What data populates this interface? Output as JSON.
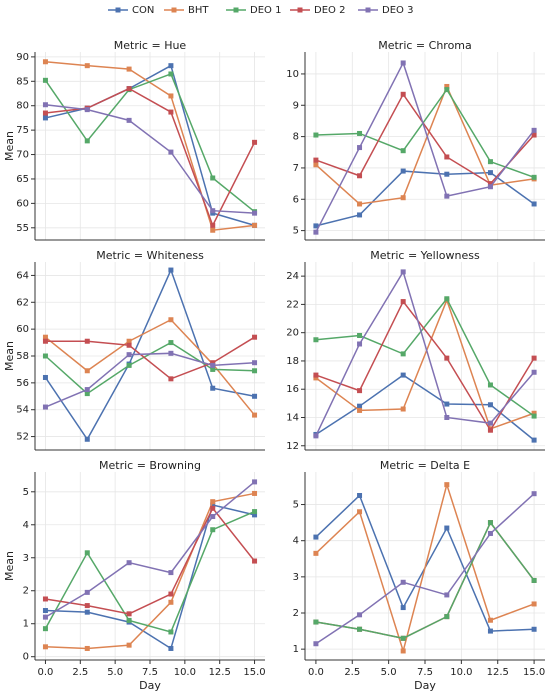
{
  "chart_data": [
    {
      "type": "line",
      "title": "Metric = Hue",
      "ylabel": "Mean",
      "legend": "top",
      "grid": true,
      "x": [
        0,
        3,
        6,
        9,
        12,
        15
      ],
      "xlim": [
        -0.75,
        15.75
      ],
      "ylim": [
        52.5,
        91
      ],
      "yticks": [
        55,
        60,
        65,
        70,
        75,
        80,
        85,
        90
      ],
      "series": [
        {
          "name": "CON",
          "color": "#4c72b0",
          "values": [
            77.5,
            79.5,
            83.5,
            88.2,
            58,
            55.5
          ]
        },
        {
          "name": "BHT",
          "color": "#dd8452",
          "values": [
            89,
            88.2,
            87.5,
            82,
            54.5,
            55.5
          ]
        },
        {
          "name": "DEO 1",
          "color": "#55a868",
          "values": [
            85.2,
            72.8,
            83.3,
            86.5,
            65.2,
            58.3
          ]
        },
        {
          "name": "DEO 2",
          "color": "#c44e52",
          "values": [
            78.5,
            79.5,
            83.5,
            78.7,
            55.5,
            72.5
          ]
        },
        {
          "name": "DEO 3",
          "color": "#8172b3",
          "values": [
            80.2,
            79.2,
            77,
            70.5,
            58.5,
            58
          ]
        }
      ]
    },
    {
      "type": "line",
      "title": "Metric = Chroma",
      "grid": true,
      "x": [
        0,
        3,
        6,
        9,
        12,
        15
      ],
      "xlim": [
        -0.75,
        15.75
      ],
      "ylim": [
        4.7,
        10.7
      ],
      "yticks": [
        5,
        6,
        7,
        8,
        9,
        10
      ],
      "series": [
        {
          "name": "CON",
          "color": "#4c72b0",
          "values": [
            5.15,
            5.5,
            6.9,
            6.8,
            6.85,
            5.85
          ]
        },
        {
          "name": "BHT",
          "color": "#dd8452",
          "values": [
            7.1,
            5.85,
            6.05,
            9.6,
            6.45,
            6.65
          ]
        },
        {
          "name": "DEO 1",
          "color": "#55a868",
          "values": [
            8.05,
            8.1,
            7.55,
            9.5,
            7.2,
            6.7
          ]
        },
        {
          "name": "DEO 2",
          "color": "#c44e52",
          "values": [
            7.25,
            6.75,
            9.35,
            7.35,
            6.5,
            8.05
          ]
        },
        {
          "name": "DEO 3",
          "color": "#8172b3",
          "values": [
            4.95,
            7.65,
            10.35,
            6.1,
            6.4,
            8.2
          ]
        }
      ]
    },
    {
      "type": "line",
      "title": "Metric = Whiteness",
      "ylabel": "Mean",
      "grid": true,
      "x": [
        0,
        3,
        6,
        9,
        12,
        15
      ],
      "xlim": [
        -0.75,
        15.75
      ],
      "ylim": [
        51,
        65
      ],
      "yticks": [
        52,
        54,
        56,
        58,
        60,
        62,
        64
      ],
      "series": [
        {
          "name": "CON",
          "color": "#4c72b0",
          "values": [
            56.4,
            51.8,
            57.4,
            64.4,
            55.6,
            55
          ]
        },
        {
          "name": "BHT",
          "color": "#dd8452",
          "values": [
            59.4,
            56.9,
            59.1,
            60.7,
            57.4,
            53.6
          ]
        },
        {
          "name": "DEO 1",
          "color": "#55a868",
          "values": [
            58,
            55.2,
            57.3,
            59,
            57,
            56.9
          ]
        },
        {
          "name": "DEO 2",
          "color": "#c44e52",
          "values": [
            59.1,
            59.1,
            58.8,
            56.3,
            57.5,
            59.4
          ]
        },
        {
          "name": "DEO 3",
          "color": "#8172b3",
          "values": [
            54.2,
            55.5,
            58.1,
            58.2,
            57.3,
            57.5
          ]
        }
      ]
    },
    {
      "type": "line",
      "title": "Metric = Yellowness",
      "grid": true,
      "x": [
        0,
        3,
        6,
        9,
        12,
        15
      ],
      "xlim": [
        -0.75,
        15.75
      ],
      "ylim": [
        11.7,
        25
      ],
      "yticks": [
        12,
        14,
        16,
        18,
        20,
        22,
        24
      ],
      "series": [
        {
          "name": "CON",
          "color": "#4c72b0",
          "values": [
            12.8,
            14.8,
            17,
            14.95,
            14.9,
            12.4
          ]
        },
        {
          "name": "BHT",
          "color": "#dd8452",
          "values": [
            16.8,
            14.5,
            14.6,
            22.3,
            13.2,
            14.3
          ]
        },
        {
          "name": "DEO 1",
          "color": "#55a868",
          "values": [
            19.5,
            19.8,
            18.5,
            22.4,
            16.3,
            14.1
          ]
        },
        {
          "name": "DEO 2",
          "color": "#c44e52",
          "values": [
            17,
            15.9,
            22.2,
            18.2,
            13.1,
            18.2
          ]
        },
        {
          "name": "DEO 3",
          "color": "#8172b3",
          "values": [
            12.7,
            19.2,
            24.3,
            14,
            13.6,
            17.2
          ]
        }
      ]
    },
    {
      "type": "line",
      "title": "Metric = Browning",
      "ylabel": "Mean",
      "xlabel": "Day",
      "grid": true,
      "x": [
        0,
        3,
        6,
        9,
        12,
        15
      ],
      "xlim": [
        -0.75,
        15.75
      ],
      "xticks": [
        {
          "value": 0,
          "label": "0.0"
        },
        {
          "value": 2.5,
          "label": "2.5"
        },
        {
          "value": 5,
          "label": "5.0"
        },
        {
          "value": 7.5,
          "label": "7.5"
        },
        {
          "value": 10,
          "label": "10.0"
        },
        {
          "value": 12.5,
          "label": "12.5"
        },
        {
          "value": 15,
          "label": "15.0"
        }
      ],
      "ylim": [
        -0.1,
        5.6
      ],
      "yticks": [
        0,
        1,
        2,
        3,
        4,
        5
      ],
      "series": [
        {
          "name": "CON",
          "color": "#4c72b0",
          "values": [
            1.4,
            1.35,
            1.05,
            0.25,
            4.6,
            4.3
          ]
        },
        {
          "name": "BHT",
          "color": "#dd8452",
          "values": [
            0.3,
            0.25,
            0.35,
            1.65,
            4.7,
            4.95
          ]
        },
        {
          "name": "DEO 1",
          "color": "#55a868",
          "values": [
            0.85,
            3.15,
            1.1,
            0.75,
            3.85,
            4.4
          ]
        },
        {
          "name": "DEO 2",
          "color": "#c44e52",
          "values": [
            1.75,
            1.55,
            1.3,
            1.9,
            4.5,
            2.9
          ]
        },
        {
          "name": "DEO 3",
          "color": "#8172b3",
          "values": [
            1.2,
            1.95,
            2.85,
            2.55,
            4.25,
            5.3
          ]
        }
      ]
    },
    {
      "type": "line",
      "title": "Metric = Delta E",
      "xlabel": "Day",
      "grid": true,
      "x": [
        0,
        3,
        6,
        9,
        12,
        15
      ],
      "xlim": [
        -0.75,
        15.75
      ],
      "xticks": [
        {
          "value": 0,
          "label": "0.0"
        },
        {
          "value": 2.5,
          "label": "2.5"
        },
        {
          "value": 5,
          "label": "5.0"
        },
        {
          "value": 7.5,
          "label": "7.5"
        },
        {
          "value": 10,
          "label": "10.0"
        },
        {
          "value": 12.5,
          "label": "12.5"
        },
        {
          "value": 15,
          "label": "15.0"
        }
      ],
      "ylim": [
        0.7,
        5.9
      ],
      "yticks": [
        1,
        2,
        3,
        4,
        5
      ],
      "series": [
        {
          "name": "CON",
          "color": "#4c72b0",
          "values": [
            4.1,
            5.25,
            2.15,
            4.35,
            1.5,
            1.55
          ]
        },
        {
          "name": "BHT",
          "color": "#dd8452",
          "values": [
            3.65,
            4.8,
            0.95,
            5.55,
            1.8,
            2.25
          ]
        },
        {
          "name": "DEO 2",
          "color": "#c44e52",
          "values": [
            1.75,
            1.55,
            1.3,
            1.9,
            4.5,
            2.9
          ]
        },
        {
          "name": "DEO 1",
          "color": "#55a868",
          "values": [
            1.75,
            1.55,
            1.3,
            1.9,
            4.5,
            2.9
          ]
        },
        {
          "name": "DEO 3",
          "color": "#8172b3",
          "values": [
            1.15,
            1.95,
            2.85,
            2.5,
            4.2,
            5.3
          ]
        }
      ]
    }
  ]
}
